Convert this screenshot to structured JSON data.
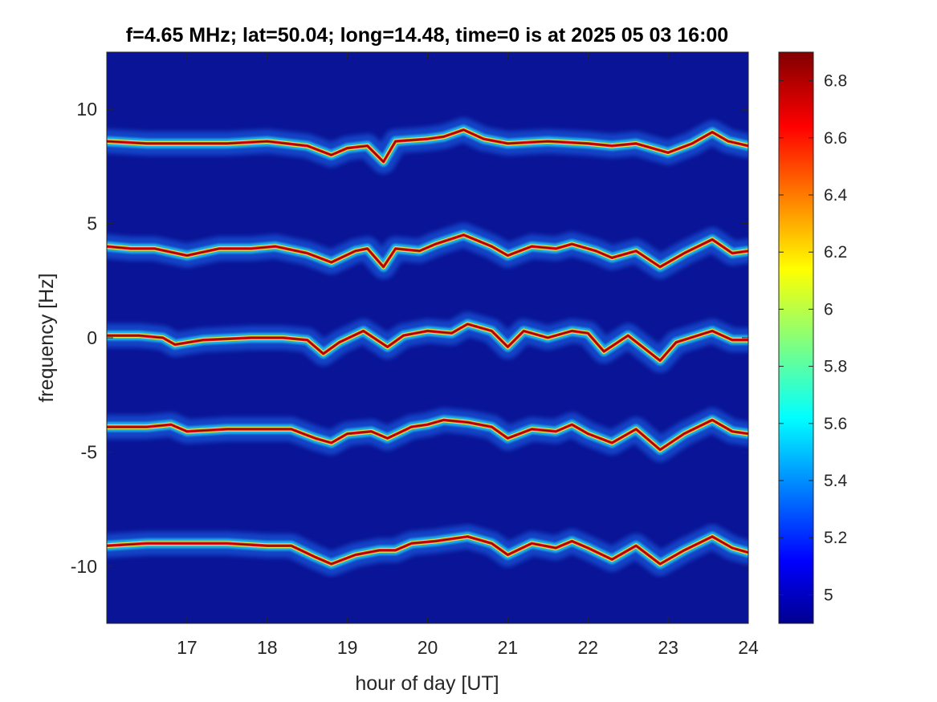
{
  "chart_data": {
    "type": "heatmap",
    "title": "f=4.65 MHz;  lat=50.04; long=14.48, time=0 is at 2025 05 03 16:00",
    "xlabel": "hour of day [UT]",
    "ylabel": "frequency [Hz]",
    "xlim": [
      16,
      24
    ],
    "ylim": [
      -12.5,
      12.5
    ],
    "xticks": [
      17,
      18,
      19,
      20,
      21,
      22,
      23,
      24
    ],
    "xtick_labels": [
      "17",
      "18",
      "19",
      "20",
      "21",
      "22",
      "23",
      "24"
    ],
    "yticks": [
      10,
      5,
      0,
      -5,
      -10
    ],
    "ytick_labels": [
      "10",
      "5",
      "0",
      "-5",
      "-10"
    ],
    "colorbar": {
      "range": [
        4.9,
        6.9
      ],
      "ticks": [
        6.8,
        6.6,
        6.4,
        6.2,
        6.0,
        5.8,
        5.6,
        5.4,
        5.2,
        5.0
      ],
      "tick_labels": [
        "6.8",
        "6.6",
        "6.4",
        "6.2",
        "6",
        "5.8",
        "5.6",
        "5.4",
        "5.2",
        "5"
      ],
      "colormap": "jet"
    },
    "background_color": "#0a1496",
    "series": [
      {
        "offset_hz": 8.5,
        "trace": [
          [
            16,
            8.6
          ],
          [
            16.5,
            8.5
          ],
          [
            17,
            8.5
          ],
          [
            17.5,
            8.5
          ],
          [
            18,
            8.6
          ],
          [
            18.5,
            8.4
          ],
          [
            18.8,
            8.0
          ],
          [
            19.0,
            8.3
          ],
          [
            19.25,
            8.4
          ],
          [
            19.45,
            7.7
          ],
          [
            19.6,
            8.6
          ],
          [
            20,
            8.7
          ],
          [
            20.2,
            8.8
          ],
          [
            20.45,
            9.1
          ],
          [
            20.7,
            8.7
          ],
          [
            21,
            8.5
          ],
          [
            21.5,
            8.6
          ],
          [
            22,
            8.5
          ],
          [
            22.3,
            8.4
          ],
          [
            22.6,
            8.5
          ],
          [
            23,
            8.1
          ],
          [
            23.3,
            8.5
          ],
          [
            23.55,
            9.0
          ],
          [
            23.75,
            8.6
          ],
          [
            24,
            8.4
          ]
        ]
      },
      {
        "offset_hz": 4.0,
        "trace": [
          [
            16,
            4.0
          ],
          [
            16.3,
            3.9
          ],
          [
            16.6,
            3.9
          ],
          [
            17.0,
            3.6
          ],
          [
            17.4,
            3.9
          ],
          [
            17.8,
            3.9
          ],
          [
            18.1,
            4.0
          ],
          [
            18.5,
            3.7
          ],
          [
            18.8,
            3.3
          ],
          [
            19.1,
            3.8
          ],
          [
            19.25,
            3.9
          ],
          [
            19.45,
            3.1
          ],
          [
            19.6,
            3.9
          ],
          [
            19.9,
            3.8
          ],
          [
            20.1,
            4.1
          ],
          [
            20.45,
            4.5
          ],
          [
            20.8,
            4.0
          ],
          [
            21.0,
            3.6
          ],
          [
            21.3,
            4.0
          ],
          [
            21.6,
            3.9
          ],
          [
            21.8,
            4.1
          ],
          [
            22.1,
            3.8
          ],
          [
            22.3,
            3.5
          ],
          [
            22.6,
            3.8
          ],
          [
            22.9,
            3.1
          ],
          [
            23.2,
            3.7
          ],
          [
            23.55,
            4.3
          ],
          [
            23.8,
            3.7
          ],
          [
            24,
            3.8
          ]
        ]
      },
      {
        "offset_hz": 0.0,
        "trace": [
          [
            16,
            0.1
          ],
          [
            16.4,
            0.1
          ],
          [
            16.7,
            0.0
          ],
          [
            16.85,
            -0.3
          ],
          [
            17.2,
            -0.1
          ],
          [
            17.8,
            0.0
          ],
          [
            18.2,
            0.0
          ],
          [
            18.5,
            -0.1
          ],
          [
            18.7,
            -0.7
          ],
          [
            18.9,
            -0.2
          ],
          [
            19.2,
            0.3
          ],
          [
            19.5,
            -0.4
          ],
          [
            19.7,
            0.1
          ],
          [
            20.0,
            0.3
          ],
          [
            20.3,
            0.2
          ],
          [
            20.5,
            0.6
          ],
          [
            20.8,
            0.3
          ],
          [
            21.0,
            -0.4
          ],
          [
            21.2,
            0.3
          ],
          [
            21.5,
            0.0
          ],
          [
            21.8,
            0.3
          ],
          [
            22.0,
            0.2
          ],
          [
            22.2,
            -0.6
          ],
          [
            22.5,
            0.1
          ],
          [
            22.9,
            -1.0
          ],
          [
            23.1,
            -0.2
          ],
          [
            23.55,
            0.3
          ],
          [
            23.8,
            -0.1
          ],
          [
            24,
            -0.1
          ]
        ]
      },
      {
        "offset_hz": -4.0,
        "trace": [
          [
            16,
            -3.9
          ],
          [
            16.5,
            -3.9
          ],
          [
            16.8,
            -3.8
          ],
          [
            17.0,
            -4.1
          ],
          [
            17.5,
            -4.0
          ],
          [
            18.0,
            -4.0
          ],
          [
            18.3,
            -4.0
          ],
          [
            18.6,
            -4.4
          ],
          [
            18.8,
            -4.6
          ],
          [
            19.0,
            -4.2
          ],
          [
            19.3,
            -4.1
          ],
          [
            19.5,
            -4.4
          ],
          [
            19.8,
            -3.9
          ],
          [
            20.0,
            -3.8
          ],
          [
            20.2,
            -3.6
          ],
          [
            20.5,
            -3.7
          ],
          [
            20.8,
            -3.9
          ],
          [
            21.0,
            -4.4
          ],
          [
            21.3,
            -4.0
          ],
          [
            21.6,
            -4.1
          ],
          [
            21.8,
            -3.8
          ],
          [
            22.0,
            -4.2
          ],
          [
            22.3,
            -4.6
          ],
          [
            22.6,
            -4.0
          ],
          [
            22.9,
            -4.9
          ],
          [
            23.2,
            -4.2
          ],
          [
            23.55,
            -3.6
          ],
          [
            23.8,
            -4.1
          ],
          [
            24,
            -4.2
          ]
        ]
      },
      {
        "offset_hz": -9.0,
        "trace": [
          [
            16,
            -9.1
          ],
          [
            16.5,
            -9.0
          ],
          [
            17.0,
            -9.0
          ],
          [
            17.5,
            -9.0
          ],
          [
            18.0,
            -9.1
          ],
          [
            18.3,
            -9.1
          ],
          [
            18.6,
            -9.6
          ],
          [
            18.8,
            -9.9
          ],
          [
            19.1,
            -9.5
          ],
          [
            19.4,
            -9.3
          ],
          [
            19.6,
            -9.3
          ],
          [
            19.8,
            -9.0
          ],
          [
            20.1,
            -8.9
          ],
          [
            20.5,
            -8.7
          ],
          [
            20.8,
            -9.0
          ],
          [
            21.0,
            -9.5
          ],
          [
            21.3,
            -9.0
          ],
          [
            21.6,
            -9.2
          ],
          [
            21.8,
            -8.9
          ],
          [
            22.0,
            -9.2
          ],
          [
            22.3,
            -9.7
          ],
          [
            22.6,
            -9.1
          ],
          [
            22.9,
            -9.9
          ],
          [
            23.2,
            -9.3
          ],
          [
            23.55,
            -8.7
          ],
          [
            23.8,
            -9.2
          ],
          [
            24,
            -9.4
          ]
        ]
      }
    ]
  }
}
